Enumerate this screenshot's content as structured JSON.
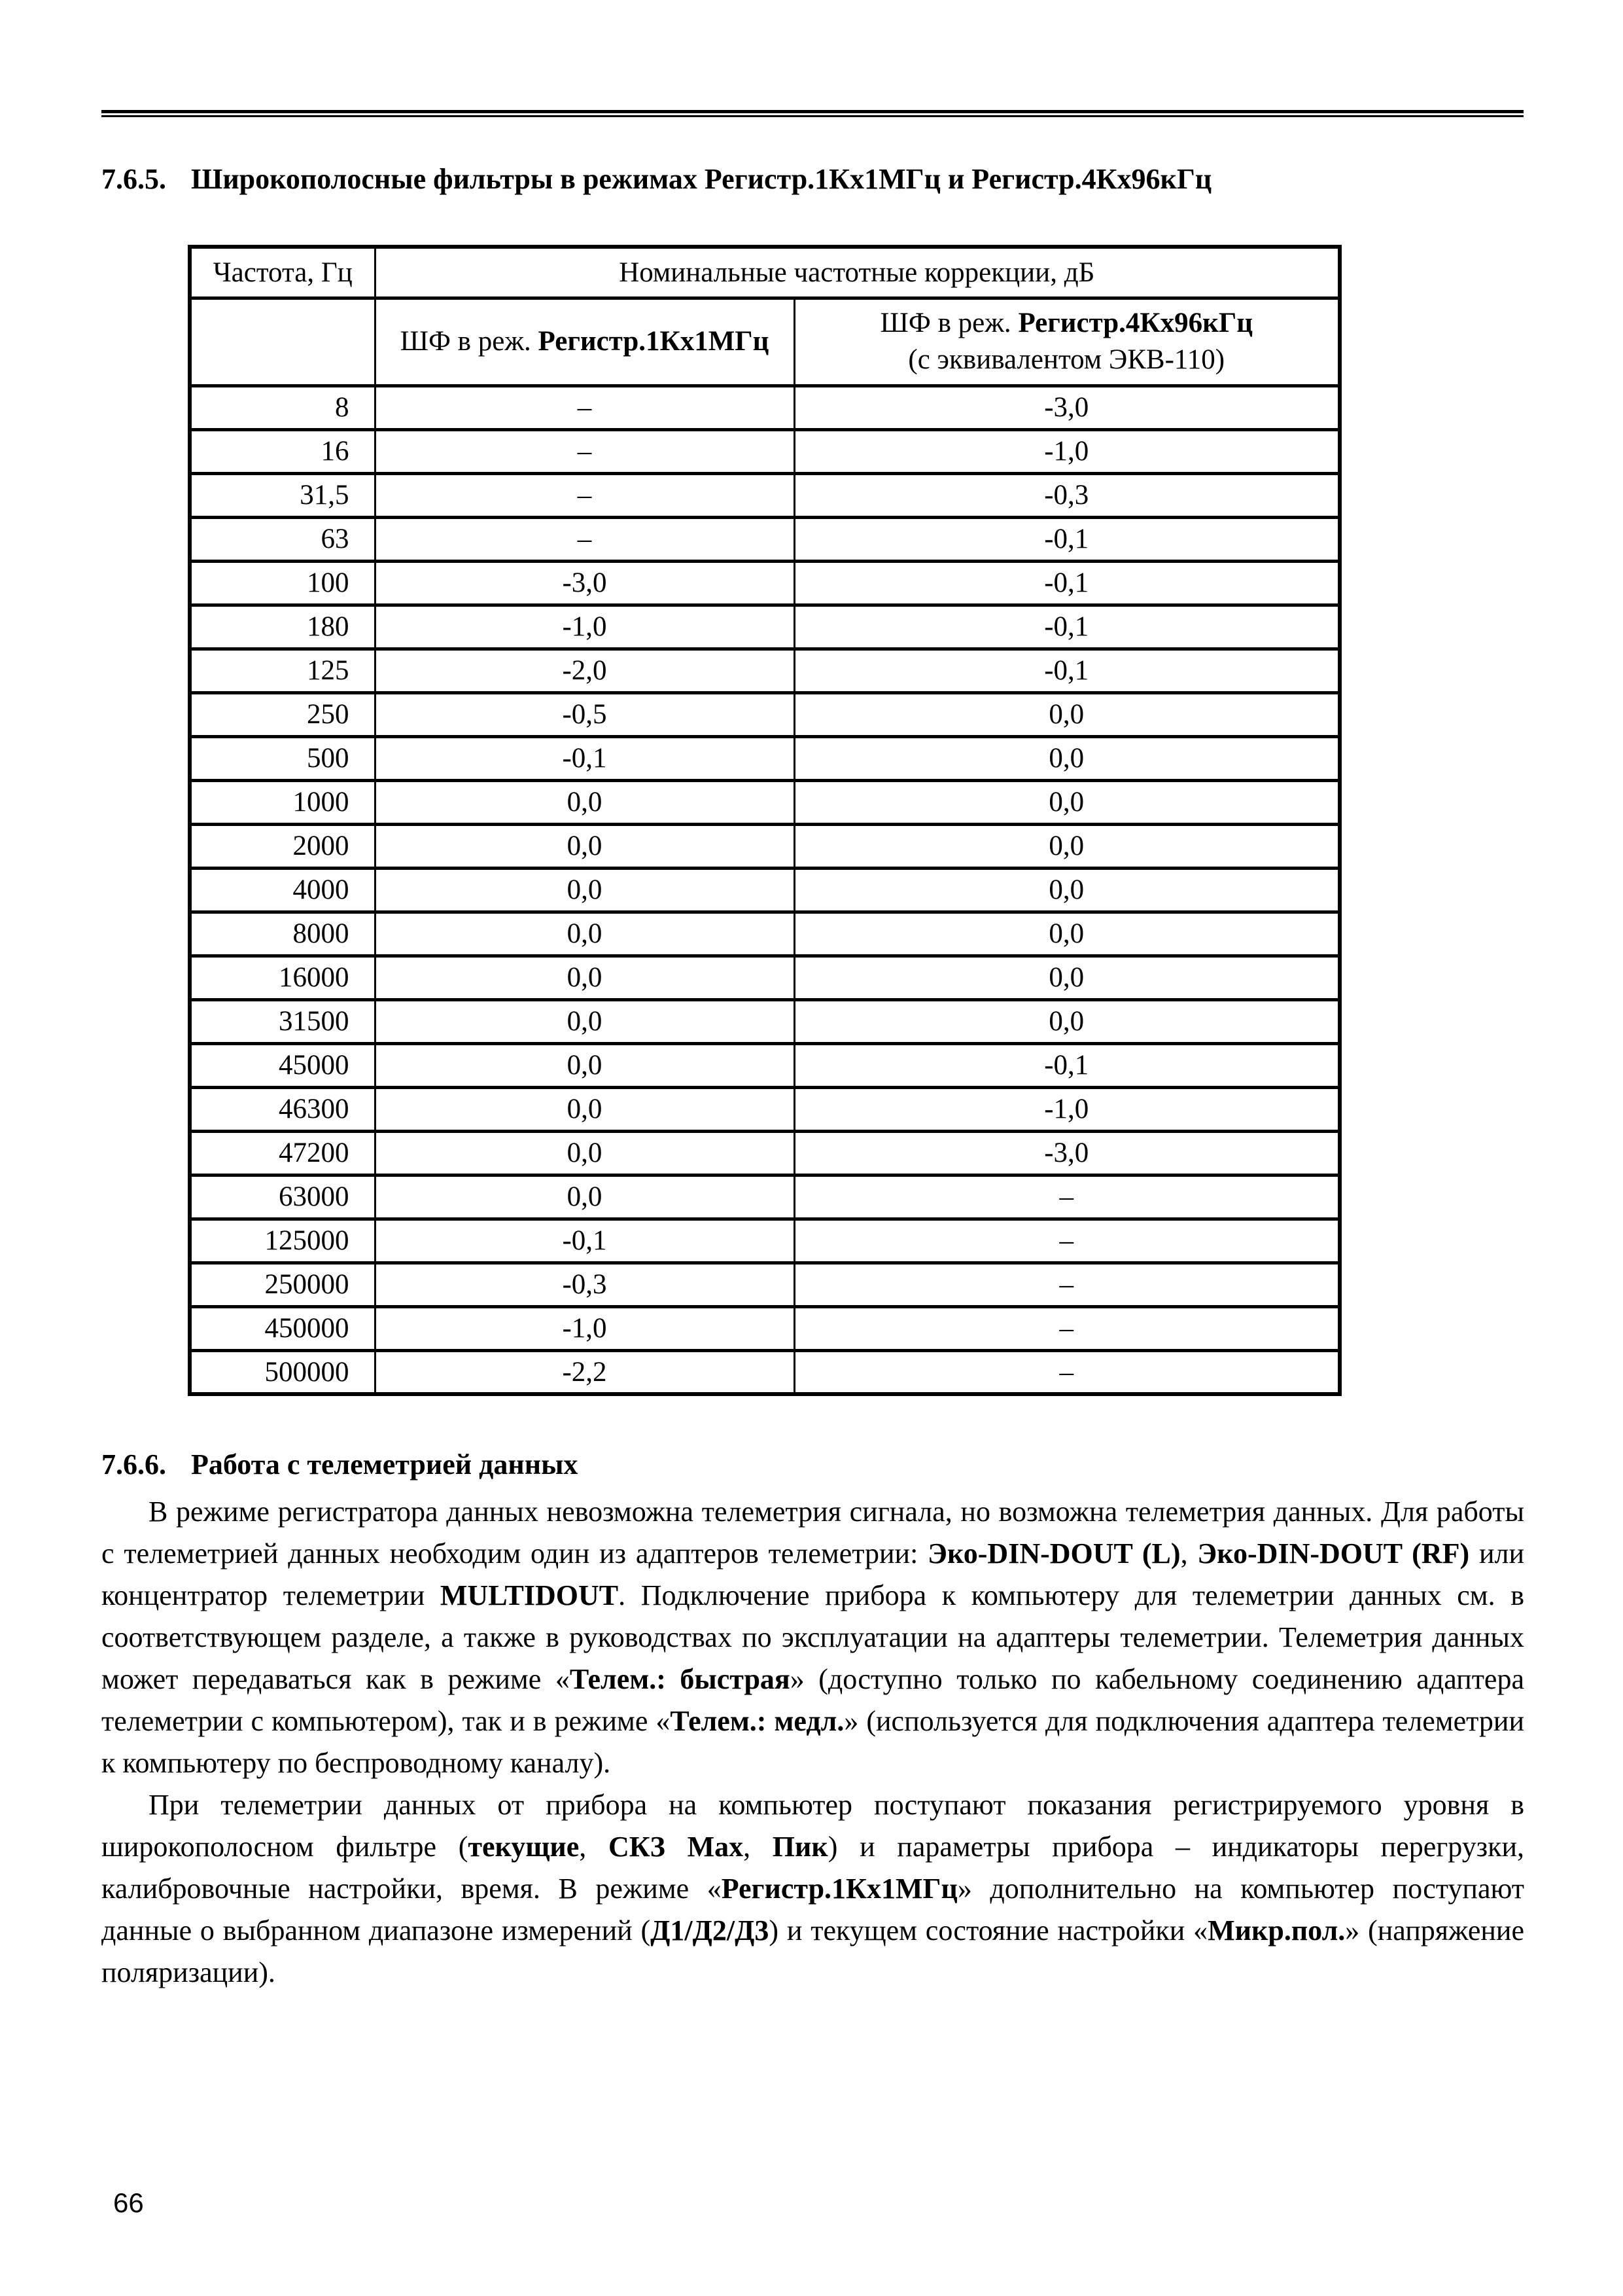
{
  "page": {
    "number": "66"
  },
  "section_765": {
    "number": "7.6.5.",
    "title": "Широкополосные фильтры в режимах Регистр.1Кх1МГц и Регистр.4Кх96кГц"
  },
  "table": {
    "header": {
      "frequency": "Частота, Гц",
      "corrections": "Номинальные частотные коррекции, дБ",
      "sub_mode_1m_runs": [
        {
          "t": "ШФ в реж. "
        },
        {
          "t": "Регистр.1Кх1МГц",
          "b": true
        }
      ],
      "sub_mode_96k_runs": [
        {
          "t": "ШФ в реж. "
        },
        {
          "t": "Регистр.4Кх96кГц",
          "b": true
        },
        {
          "br": true
        },
        {
          "t": "(с эквивалентом ЭКВ-110)"
        }
      ]
    },
    "rows": [
      {
        "freq": "8",
        "mode1m": "–",
        "mode96k": "-3,0"
      },
      {
        "freq": "16",
        "mode1m": "–",
        "mode96k": "-1,0"
      },
      {
        "freq": "31,5",
        "mode1m": "–",
        "mode96k": "-0,3"
      },
      {
        "freq": "63",
        "mode1m": "–",
        "mode96k": "-0,1"
      },
      {
        "freq": "100",
        "mode1m": "-3,0",
        "mode96k": "-0,1"
      },
      {
        "freq": "180",
        "mode1m": "-1,0",
        "mode96k": "-0,1"
      },
      {
        "freq": "125",
        "mode1m": "-2,0",
        "mode96k": "-0,1"
      },
      {
        "freq": "250",
        "mode1m": "-0,5",
        "mode96k": "0,0"
      },
      {
        "freq": "500",
        "mode1m": "-0,1",
        "mode96k": "0,0"
      },
      {
        "freq": "1000",
        "mode1m": "0,0",
        "mode96k": "0,0"
      },
      {
        "freq": "2000",
        "mode1m": "0,0",
        "mode96k": "0,0"
      },
      {
        "freq": "4000",
        "mode1m": "0,0",
        "mode96k": "0,0"
      },
      {
        "freq": "8000",
        "mode1m": "0,0",
        "mode96k": "0,0"
      },
      {
        "freq": "16000",
        "mode1m": "0,0",
        "mode96k": "0,0"
      },
      {
        "freq": "31500",
        "mode1m": "0,0",
        "mode96k": "0,0"
      },
      {
        "freq": "45000",
        "mode1m": "0,0",
        "mode96k": "-0,1"
      },
      {
        "freq": "46300",
        "mode1m": "0,0",
        "mode96k": "-1,0"
      },
      {
        "freq": "47200",
        "mode1m": "0,0",
        "mode96k": "-3,0"
      },
      {
        "freq": "63000",
        "mode1m": "0,0",
        "mode96k": "–"
      },
      {
        "freq": "125000",
        "mode1m": "-0,1",
        "mode96k": "–"
      },
      {
        "freq": "250000",
        "mode1m": "-0,3",
        "mode96k": "–"
      },
      {
        "freq": "450000",
        "mode1m": "-1,0",
        "mode96k": "–"
      },
      {
        "freq": "500000",
        "mode1m": "-2,2",
        "mode96k": "–"
      }
    ]
  },
  "section_766": {
    "number": "7.6.6.",
    "title": "Работа с телеметрией данных"
  },
  "paragraphs": {
    "intro_runs": [
      {
        "t": "В режиме регистратора данных невозможна телеметрия сигнала, но возможна телеметрия данных. Для работы с телеметрией данных необходим один из адаптеров телеметрии: "
      },
      {
        "t": "Эко-DIN-DOUT (L)",
        "b": true
      },
      {
        "t": ", "
      },
      {
        "t": "Эко-DIN-DOUT (RF)",
        "b": true
      },
      {
        "t": " или концентратор телеметрии "
      },
      {
        "t": "MULTIDOUT",
        "b": true
      },
      {
        "t": ". Подключение прибора к компьютеру для телеметрии данных см. в соответствующем разделе, а также в руководствах по эксплуатации на адаптеры телеметрии. Телеметрия данных может передаваться как в режиме «"
      },
      {
        "t": "Телем.: быстрая",
        "b": true
      },
      {
        "t": "» (доступно только по кабельному соединению адаптера телеметрии с компьютером), так и в режиме «"
      },
      {
        "t": "Телем.: медл.",
        "b": true
      },
      {
        "t": "» (используется для подключения адаптера телеметрии к компьютеру по беспроводному каналу)."
      }
    ],
    "details_runs": [
      {
        "t": "При телеметрии данных от прибора на компьютер поступают показания регистрируемого уровня в широкополосном фильтре ("
      },
      {
        "t": "текущие",
        "b": true
      },
      {
        "t": ", "
      },
      {
        "t": "СКЗ Max",
        "b": true
      },
      {
        "t": ", "
      },
      {
        "t": "Пик",
        "b": true
      },
      {
        "t": ") и параметры прибора – индикаторы перегрузки, калибровочные настройки, время. В режиме «"
      },
      {
        "t": "Регистр.1Кх1МГц",
        "b": true
      },
      {
        "t": "» дополнительно на компьютер поступают данные о выбранном диапазоне измерений ("
      },
      {
        "t": "Д1/Д2/Д3",
        "b": true
      },
      {
        "t": ") и текущем состояние настройки «"
      },
      {
        "t": "Микр.пол.",
        "b": true
      },
      {
        "t": "» (напряжение поляризации)."
      }
    ]
  }
}
